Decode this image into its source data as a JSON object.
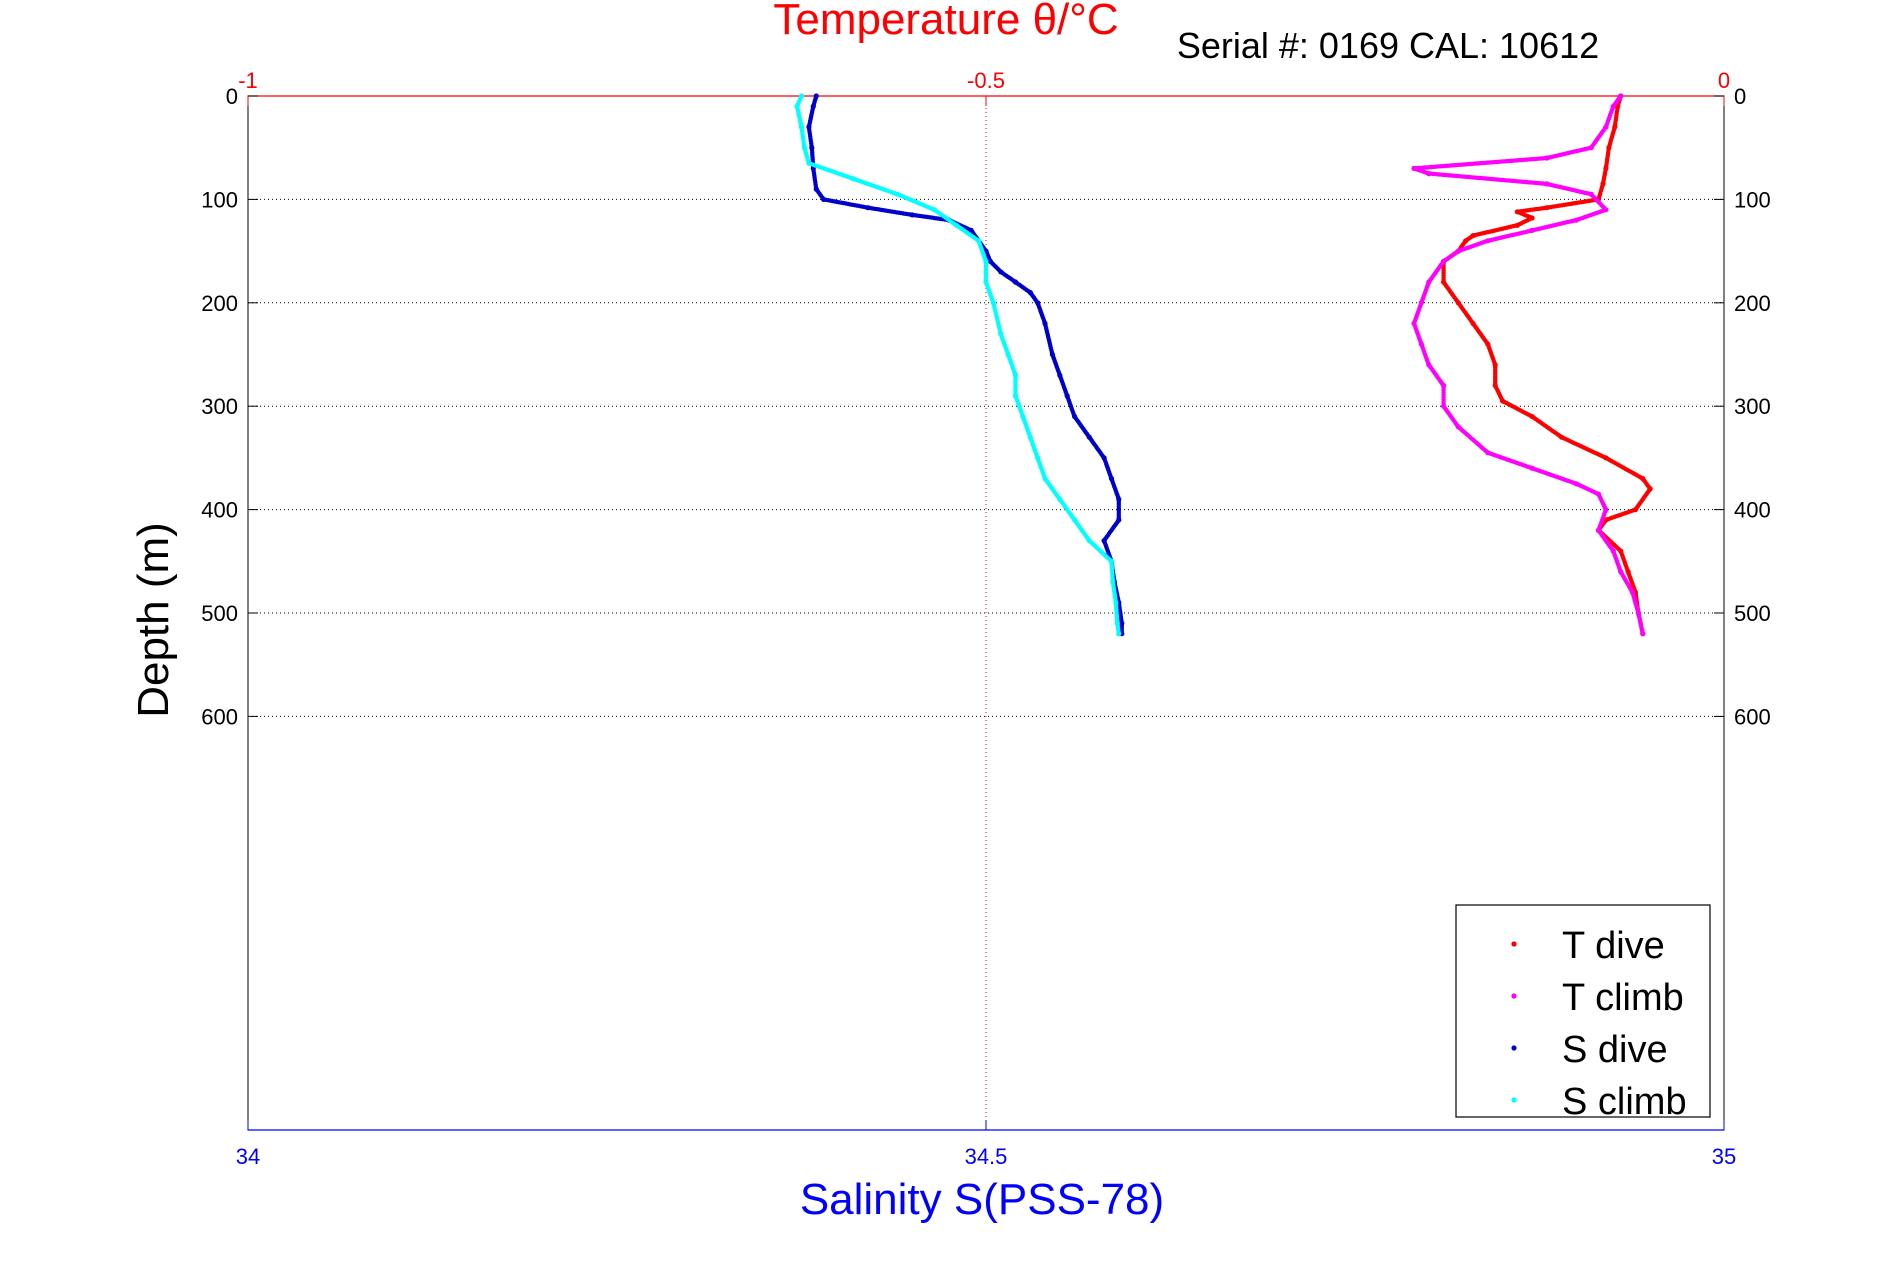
{
  "chart_data": {
    "type": "scatter",
    "top_axis_title": "Temperature θ/°C",
    "bottom_axis_title": "Salinity S(PSS-78)",
    "ylabel": "Depth (m)",
    "annotation": "Serial #: 0169 CAL: 10612",
    "colors": {
      "temperature_axis": "#ff0000",
      "salinity_axis": "#0000ff",
      "t_dive": "#ff0000",
      "t_climb": "#ff00ff",
      "s_dive": "#0000cc",
      "s_climb": "#00ffff"
    },
    "top_axis": {
      "range": [
        -1,
        0
      ],
      "ticks": [
        -1,
        -0.5,
        0
      ],
      "tick_labels": [
        "-1",
        "-0.5",
        "0"
      ]
    },
    "bottom_axis": {
      "range": [
        34,
        35
      ],
      "ticks": [
        34,
        34.5,
        35
      ],
      "tick_labels": [
        "34",
        "34.5",
        "35"
      ]
    },
    "y_axis": {
      "range": [
        0,
        1000
      ],
      "reversed": true,
      "ticks": [
        0,
        100,
        200,
        300,
        400,
        500,
        600
      ],
      "tick_labels": [
        "0",
        "100",
        "200",
        "300",
        "400",
        "500",
        "600"
      ]
    },
    "grid": "dotted, at major ticks",
    "legend_position": "bottom-right",
    "series": [
      {
        "name": "T dive",
        "axis": "temperature",
        "points": [
          [
            -0.07,
            0
          ],
          [
            -0.072,
            10
          ],
          [
            -0.074,
            30
          ],
          [
            -0.078,
            50
          ],
          [
            -0.08,
            70
          ],
          [
            -0.082,
            85
          ],
          [
            -0.085,
            100
          ],
          [
            -0.12,
            108
          ],
          [
            -0.14,
            112
          ],
          [
            -0.13,
            118
          ],
          [
            -0.14,
            125
          ],
          [
            -0.17,
            135
          ],
          [
            -0.175,
            140
          ],
          [
            -0.18,
            150
          ],
          [
            -0.19,
            160
          ],
          [
            -0.19,
            180
          ],
          [
            -0.18,
            200
          ],
          [
            -0.17,
            220
          ],
          [
            -0.16,
            240
          ],
          [
            -0.155,
            260
          ],
          [
            -0.155,
            280
          ],
          [
            -0.15,
            295
          ],
          [
            -0.13,
            310
          ],
          [
            -0.11,
            330
          ],
          [
            -0.08,
            350
          ],
          [
            -0.055,
            370
          ],
          [
            -0.05,
            380
          ],
          [
            -0.06,
            400
          ],
          [
            -0.08,
            410
          ],
          [
            -0.085,
            420
          ],
          [
            -0.07,
            440
          ],
          [
            -0.065,
            460
          ],
          [
            -0.06,
            480
          ],
          [
            -0.058,
            500
          ],
          [
            -0.055,
            520
          ]
        ]
      },
      {
        "name": "T climb",
        "axis": "temperature",
        "points": [
          [
            -0.055,
            520
          ],
          [
            -0.058,
            500
          ],
          [
            -0.062,
            480
          ],
          [
            -0.07,
            460
          ],
          [
            -0.075,
            440
          ],
          [
            -0.085,
            420
          ],
          [
            -0.08,
            400
          ],
          [
            -0.085,
            385
          ],
          [
            -0.1,
            375
          ],
          [
            -0.13,
            360
          ],
          [
            -0.16,
            345
          ],
          [
            -0.18,
            320
          ],
          [
            -0.19,
            300
          ],
          [
            -0.19,
            280
          ],
          [
            -0.2,
            260
          ],
          [
            -0.205,
            240
          ],
          [
            -0.21,
            220
          ],
          [
            -0.205,
            200
          ],
          [
            -0.2,
            180
          ],
          [
            -0.19,
            160
          ],
          [
            -0.18,
            150
          ],
          [
            -0.16,
            140
          ],
          [
            -0.13,
            130
          ],
          [
            -0.1,
            120
          ],
          [
            -0.08,
            110
          ],
          [
            -0.09,
            95
          ],
          [
            -0.12,
            85
          ],
          [
            -0.2,
            75
          ],
          [
            -0.21,
            70
          ],
          [
            -0.12,
            60
          ],
          [
            -0.09,
            50
          ],
          [
            -0.08,
            30
          ],
          [
            -0.075,
            10
          ],
          [
            -0.07,
            0
          ]
        ]
      },
      {
        "name": "S dive",
        "axis": "salinity",
        "points": [
          [
            34.385,
            0
          ],
          [
            34.383,
            10
          ],
          [
            34.38,
            30
          ],
          [
            34.382,
            50
          ],
          [
            34.383,
            70
          ],
          [
            34.385,
            90
          ],
          [
            34.39,
            100
          ],
          [
            34.42,
            108
          ],
          [
            34.45,
            115
          ],
          [
            34.475,
            120
          ],
          [
            34.49,
            130
          ],
          [
            34.5,
            150
          ],
          [
            34.503,
            160
          ],
          [
            34.51,
            170
          ],
          [
            34.52,
            180
          ],
          [
            34.53,
            190
          ],
          [
            34.535,
            200
          ],
          [
            34.54,
            220
          ],
          [
            34.545,
            250
          ],
          [
            34.55,
            270
          ],
          [
            34.555,
            290
          ],
          [
            34.56,
            310
          ],
          [
            34.57,
            330
          ],
          [
            34.58,
            350
          ],
          [
            34.585,
            370
          ],
          [
            34.59,
            390
          ],
          [
            34.59,
            410
          ],
          [
            34.58,
            430
          ],
          [
            34.585,
            450
          ],
          [
            34.587,
            470
          ],
          [
            34.59,
            490
          ],
          [
            34.592,
            510
          ],
          [
            34.592,
            520
          ]
        ]
      },
      {
        "name": "S climb",
        "axis": "salinity",
        "points": [
          [
            34.59,
            520
          ],
          [
            34.589,
            510
          ],
          [
            34.588,
            490
          ],
          [
            34.586,
            470
          ],
          [
            34.585,
            450
          ],
          [
            34.57,
            430
          ],
          [
            34.56,
            410
          ],
          [
            34.55,
            390
          ],
          [
            34.54,
            370
          ],
          [
            34.535,
            350
          ],
          [
            34.53,
            330
          ],
          [
            34.525,
            310
          ],
          [
            34.52,
            290
          ],
          [
            34.52,
            270
          ],
          [
            34.515,
            250
          ],
          [
            34.51,
            230
          ],
          [
            34.505,
            200
          ],
          [
            34.5,
            180
          ],
          [
            34.5,
            160
          ],
          [
            34.495,
            140
          ],
          [
            34.48,
            125
          ],
          [
            34.465,
            110
          ],
          [
            34.44,
            95
          ],
          [
            34.41,
            80
          ],
          [
            34.38,
            65
          ],
          [
            34.377,
            50
          ],
          [
            34.375,
            30
          ],
          [
            34.372,
            10
          ],
          [
            34.375,
            0
          ]
        ]
      }
    ]
  }
}
